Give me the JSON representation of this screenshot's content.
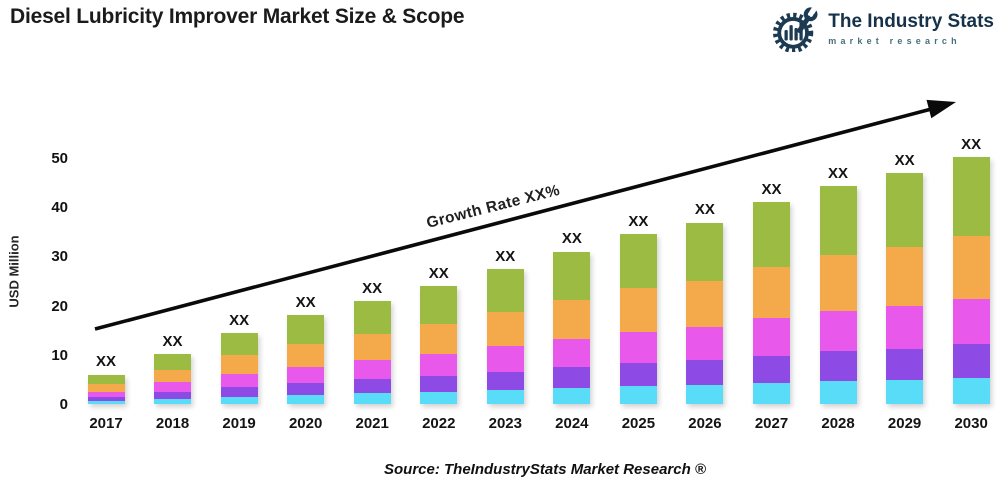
{
  "header": {
    "title": "Diesel Lubricity Improver Market Size & Scope"
  },
  "logo": {
    "brand": "The Industry Stats",
    "tagline": "market research",
    "primary_color": "#1c3a52",
    "tagline_color": "#47707f"
  },
  "chart_data": {
    "type": "bar",
    "stacked": true,
    "categories": [
      "2017",
      "2018",
      "2019",
      "2020",
      "2021",
      "2022",
      "2023",
      "2024",
      "2025",
      "2026",
      "2027",
      "2028",
      "2029",
      "2030"
    ],
    "series": [
      {
        "name": "cyan",
        "color": "#59dcf7",
        "values": [
          0.6,
          1.1,
          1.5,
          1.9,
          2.2,
          2.5,
          2.9,
          3.3,
          3.6,
          3.9,
          4.3,
          4.7,
          4.9,
          5.3
        ]
      },
      {
        "name": "purple",
        "color": "#8d4ae4",
        "values": [
          0.8,
          1.4,
          2.0,
          2.4,
          2.8,
          3.2,
          3.7,
          4.2,
          4.7,
          5.0,
          5.5,
          6.0,
          6.3,
          6.8
        ]
      },
      {
        "name": "magenta",
        "color": "#e858ea",
        "values": [
          1.1,
          1.9,
          2.7,
          3.3,
          3.9,
          4.4,
          5.1,
          5.7,
          6.4,
          6.8,
          7.6,
          8.2,
          8.7,
          9.3
        ]
      },
      {
        "name": "orange",
        "color": "#f4a94a",
        "values": [
          1.6,
          2.6,
          3.7,
          4.6,
          5.4,
          6.1,
          7.0,
          7.9,
          8.8,
          9.4,
          10.5,
          11.3,
          12.0,
          12.8
        ]
      },
      {
        "name": "green",
        "color": "#9cbb43",
        "values": [
          1.9,
          3.2,
          4.6,
          5.8,
          6.7,
          7.7,
          8.8,
          9.9,
          11.0,
          11.8,
          13.1,
          14.2,
          15.0,
          16.0
        ]
      }
    ],
    "bar_totals": [
      6.0,
      10.2,
      14.5,
      18.0,
      21.0,
      23.9,
      27.5,
      31.0,
      34.5,
      36.9,
      41.0,
      44.4,
      46.9,
      50.2
    ],
    "bar_value_label": "XX",
    "ylabel": "USD Million",
    "yticks": [
      0,
      10,
      20,
      30,
      40,
      50
    ],
    "ylim": [
      0,
      55
    ],
    "grid": false,
    "legend": "none",
    "annotation": "Growth Rate XX%"
  },
  "footer": {
    "source": "Source: TheIndustryStats Market Research ®"
  }
}
